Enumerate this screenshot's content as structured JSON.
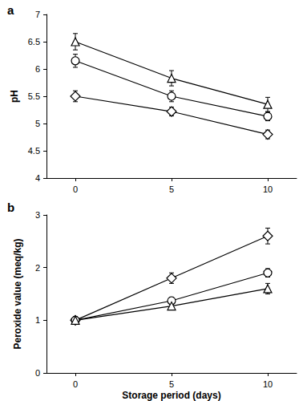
{
  "chart_data": [
    {
      "type": "line",
      "title": "a",
      "y_label": "pH",
      "x": [
        0,
        5,
        10
      ],
      "xlim": [
        -1.5,
        11.5
      ],
      "xticks": [
        0,
        5,
        10
      ],
      "ylim": [
        4,
        7
      ],
      "yticks": [
        4,
        4.5,
        5,
        5.5,
        6,
        6.5,
        7
      ],
      "grid": false,
      "series": [
        {
          "color": "#000000",
          "marker": "triangle",
          "values": [
            6.5,
            5.83,
            5.35
          ],
          "errors": [
            0.15,
            0.14,
            0.13
          ]
        },
        {
          "color": "#000000",
          "marker": "circle",
          "values": [
            6.15,
            5.5,
            5.13
          ],
          "errors": [
            0.12,
            0.1,
            0.08
          ]
        },
        {
          "color": "#000000",
          "marker": "diamond",
          "values": [
            5.5,
            5.22,
            4.8
          ],
          "errors": [
            0.1,
            0.08,
            0.08
          ]
        }
      ]
    },
    {
      "type": "line",
      "title": "b",
      "x_label": "Storage period (days)",
      "y_label": "Peroxide value (meq/kg)",
      "x": [
        0,
        5,
        10
      ],
      "xlim": [
        -1.5,
        11.5
      ],
      "xticks": [
        0,
        5,
        10
      ],
      "ylim": [
        0,
        3
      ],
      "yticks": [
        0,
        1,
        2,
        3
      ],
      "grid": false,
      "series": [
        {
          "color": "#000000",
          "marker": "diamond",
          "values": [
            1.0,
            1.8,
            2.6
          ],
          "errors": [
            0.07,
            0.1,
            0.15
          ]
        },
        {
          "color": "#000000",
          "marker": "circle",
          "values": [
            1.0,
            1.37,
            1.9
          ],
          "errors": [
            0.06,
            0.07,
            0.08
          ]
        },
        {
          "color": "#000000",
          "marker": "triangle",
          "values": [
            1.0,
            1.27,
            1.6
          ],
          "errors": [
            0.06,
            0.06,
            0.1
          ]
        }
      ]
    }
  ]
}
